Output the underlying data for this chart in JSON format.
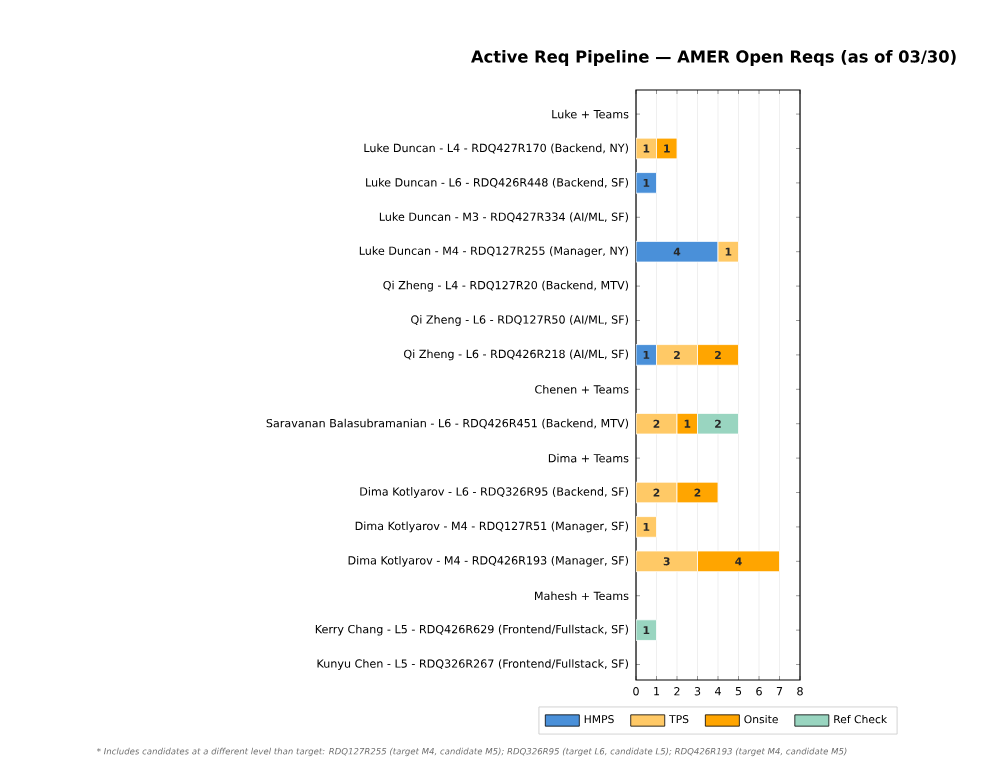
{
  "chart_data": {
    "type": "bar",
    "orientation": "horizontal",
    "stacked": true,
    "title": "Active Req Pipeline — AMER Open Reqs (as of 03/30)",
    "categories": [
      "Luke + Teams",
      "Luke Duncan - L4 - RDQ427R170 (Backend, NY)",
      "Luke Duncan - L6 - RDQ426R448 (Backend, SF)",
      "Luke Duncan - M3 - RDQ427R334 (AI/ML, SF)",
      "Luke Duncan - M4 - RDQ127R255 (Manager, NY)",
      "Qi Zheng - L4 - RDQ127R20 (Backend, MTV)",
      "Qi Zheng - L6 - RDQ127R50 (AI/ML, SF)",
      "Qi Zheng - L6 - RDQ426R218 (AI/ML, SF)",
      "Chenen + Teams",
      "Saravanan Balasubramanian - L6 - RDQ426R451 (Backend, MTV)",
      "Dima + Teams",
      "Dima Kotlyarov - L6 - RDQ326R95 (Backend, SF)",
      "Dima Kotlyarov - M4 - RDQ127R51 (Manager, SF)",
      "Dima Kotlyarov - M4 - RDQ426R193 (Manager, SF)",
      "Mahesh + Teams",
      "Kerry Chang - L5 - RDQ426R629 (Frontend/Fullstack, SF)",
      "Kunyu Chen - L5 - RDQ326R267 (Frontend/Fullstack, SF)"
    ],
    "series": [
      {
        "name": "HMPS",
        "color": "#4a90d9",
        "values": [
          null,
          null,
          1,
          null,
          4,
          null,
          null,
          1,
          null,
          null,
          null,
          null,
          null,
          null,
          null,
          null,
          null
        ]
      },
      {
        "name": "TPS",
        "color": "#ffc966",
        "values": [
          null,
          1,
          null,
          null,
          1,
          null,
          null,
          2,
          null,
          2,
          null,
          2,
          1,
          3,
          null,
          null,
          null
        ]
      },
      {
        "name": "Onsite",
        "color": "#ffa500",
        "values": [
          null,
          1,
          null,
          null,
          null,
          null,
          null,
          2,
          null,
          1,
          null,
          2,
          null,
          4,
          null,
          null,
          null
        ]
      },
      {
        "name": "Ref Check",
        "color": "#99d5c0",
        "values": [
          null,
          null,
          null,
          null,
          null,
          null,
          null,
          null,
          null,
          2,
          null,
          null,
          null,
          null,
          null,
          1,
          null
        ]
      }
    ],
    "xlim": [
      0,
      8
    ],
    "xticks": [
      0,
      1,
      2,
      3,
      4,
      5,
      6,
      7,
      8
    ],
    "grid": "x",
    "legend": "bottom",
    "data_labels": true,
    "annotations": [
      "* Includes candidates at a different level than target: RDQ127R255 (target M4, candidate M5); RDQ326R95 (target L6, candidate L5); RDQ426R193 (target M4, candidate M5)"
    ]
  }
}
